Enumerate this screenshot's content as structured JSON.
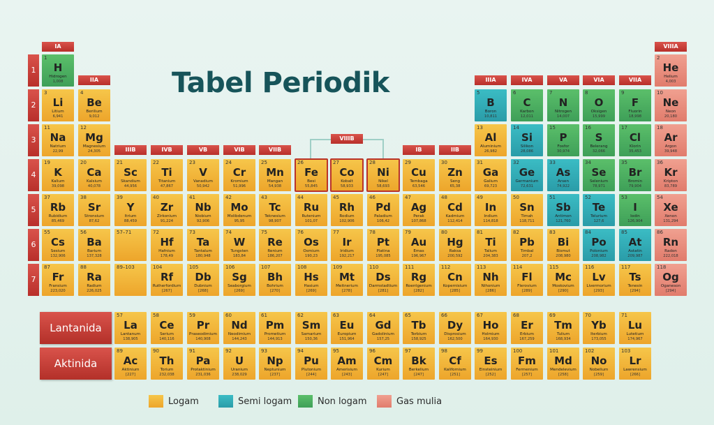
{
  "title": "Tabel Periodik",
  "colors": {
    "metal": "#f0b033",
    "metalloid": "#2fa9b3",
    "nonmetal": "#4aae60",
    "noble": "#e68b7b",
    "label": "#c23c35",
    "title": "#17545a"
  },
  "groups": [
    "IA",
    "IIA",
    "IIIB",
    "IVB",
    "VB",
    "VIB",
    "VIIB",
    "VIIIB",
    "IB",
    "IIB",
    "IIIA",
    "IVA",
    "VA",
    "VIA",
    "VIIA",
    "VIIIA"
  ],
  "periods": [
    "1",
    "2",
    "3",
    "4",
    "5",
    "6",
    "7"
  ],
  "series_labels": {
    "lanthanide": "Lantanida",
    "actinide": "Aktinida"
  },
  "legend": [
    {
      "label": "Logam",
      "type": "metal"
    },
    {
      "label": "Semi logam",
      "type": "metalloid"
    },
    {
      "label": "Non logam",
      "type": "nonmetal"
    },
    {
      "label": "Gas mulia",
      "type": "noble"
    }
  ],
  "elements": [
    {
      "n": "1",
      "s": "H",
      "name": "Hidrogen",
      "m": "1,008",
      "t": "nonmetal",
      "row": 0,
      "col": 0
    },
    {
      "n": "2",
      "s": "He",
      "name": "Helium",
      "m": "4,003",
      "t": "noble",
      "row": 0,
      "col": 17
    },
    {
      "n": "3",
      "s": "Li",
      "name": "Litium",
      "m": "6,941",
      "t": "metal",
      "row": 1,
      "col": 0
    },
    {
      "n": "4",
      "s": "Be",
      "name": "Berilium",
      "m": "9,012",
      "t": "metal",
      "row": 1,
      "col": 1
    },
    {
      "n": "5",
      "s": "B",
      "name": "Boron",
      "m": "10,811",
      "t": "metalloid",
      "row": 1,
      "col": 12
    },
    {
      "n": "6",
      "s": "C",
      "name": "Karbon",
      "m": "12,011",
      "t": "nonmetal",
      "row": 1,
      "col": 13
    },
    {
      "n": "7",
      "s": "N",
      "name": "Nitrogen",
      "m": "14,007",
      "t": "nonmetal",
      "row": 1,
      "col": 14
    },
    {
      "n": "8",
      "s": "O",
      "name": "Oksigen",
      "m": "15,999",
      "t": "nonmetal",
      "row": 1,
      "col": 15
    },
    {
      "n": "9",
      "s": "F",
      "name": "Fluorin",
      "m": "18,998",
      "t": "nonmetal",
      "row": 1,
      "col": 16
    },
    {
      "n": "10",
      "s": "Ne",
      "name": "Neon",
      "m": "20,180",
      "t": "noble",
      "row": 1,
      "col": 17
    },
    {
      "n": "11",
      "s": "Na",
      "name": "Natrium",
      "m": "22,99",
      "t": "metal",
      "row": 2,
      "col": 0
    },
    {
      "n": "12",
      "s": "Mg",
      "name": "Magnesium",
      "m": "24,305",
      "t": "metal",
      "row": 2,
      "col": 1
    },
    {
      "n": "13",
      "s": "Al",
      "name": "Aluminium",
      "m": "26,982",
      "t": "metal",
      "row": 2,
      "col": 12
    },
    {
      "n": "14",
      "s": "Si",
      "name": "Silikon",
      "m": "28,086",
      "t": "metalloid",
      "row": 2,
      "col": 13
    },
    {
      "n": "15",
      "s": "P",
      "name": "Fosfor",
      "m": "30,974",
      "t": "nonmetal",
      "row": 2,
      "col": 14
    },
    {
      "n": "16",
      "s": "S",
      "name": "Belerang",
      "m": "32,066",
      "t": "nonmetal",
      "row": 2,
      "col": 15
    },
    {
      "n": "17",
      "s": "Cl",
      "name": "Klorin",
      "m": "35,453",
      "t": "nonmetal",
      "row": 2,
      "col": 16
    },
    {
      "n": "18",
      "s": "Ar",
      "name": "Argon",
      "m": "39,948",
      "t": "noble",
      "row": 2,
      "col": 17
    },
    {
      "n": "19",
      "s": "K",
      "name": "Kalium",
      "m": "39,098",
      "t": "metal",
      "row": 3,
      "col": 0
    },
    {
      "n": "20",
      "s": "Ca",
      "name": "Kalsium",
      "m": "40,078",
      "t": "metal",
      "row": 3,
      "col": 1
    },
    {
      "n": "21",
      "s": "Sc",
      "name": "Skandium",
      "m": "44,956",
      "t": "metal",
      "row": 3,
      "col": 2
    },
    {
      "n": "22",
      "s": "Ti",
      "name": "Titanium",
      "m": "47,867",
      "t": "metal",
      "row": 3,
      "col": 3
    },
    {
      "n": "23",
      "s": "V",
      "name": "Vanadium",
      "m": "50,942",
      "t": "metal",
      "row": 3,
      "col": 4
    },
    {
      "n": "24",
      "s": "Cr",
      "name": "Kromium",
      "m": "51,996",
      "t": "metal",
      "row": 3,
      "col": 5
    },
    {
      "n": "25",
      "s": "Mn",
      "name": "Mangan",
      "m": "54,938",
      "t": "metal",
      "row": 3,
      "col": 6
    },
    {
      "n": "26",
      "s": "Fe",
      "name": "Besi",
      "m": "55,845",
      "t": "metal",
      "row": 3,
      "col": 7,
      "hl": true
    },
    {
      "n": "27",
      "s": "Co",
      "name": "Kobalt",
      "m": "58,933",
      "t": "metal",
      "row": 3,
      "col": 8,
      "hl": true
    },
    {
      "n": "28",
      "s": "Ni",
      "name": "Nikel",
      "m": "58,693",
      "t": "metal",
      "row": 3,
      "col": 9,
      "hl": true
    },
    {
      "n": "29",
      "s": "Cu",
      "name": "Tembaga",
      "m": "63,546",
      "t": "metal",
      "row": 3,
      "col": 10
    },
    {
      "n": "30",
      "s": "Zn",
      "name": "Seng",
      "m": "65,38",
      "t": "metal",
      "row": 3,
      "col": 11
    },
    {
      "n": "31",
      "s": "Ga",
      "name": "Galium",
      "m": "69,723",
      "t": "metal",
      "row": 3,
      "col": 12
    },
    {
      "n": "32",
      "s": "Ge",
      "name": "Germanium",
      "m": "72,631",
      "t": "metalloid",
      "row": 3,
      "col": 13
    },
    {
      "n": "33",
      "s": "As",
      "name": "Arsen",
      "m": "74,922",
      "t": "metalloid",
      "row": 3,
      "col": 14
    },
    {
      "n": "34",
      "s": "Se",
      "name": "Selenium",
      "m": "78,971",
      "t": "nonmetal",
      "row": 3,
      "col": 15
    },
    {
      "n": "35",
      "s": "Br",
      "name": "Bromin",
      "m": "79,904",
      "t": "nonmetal",
      "row": 3,
      "col": 16
    },
    {
      "n": "36",
      "s": "Kr",
      "name": "Kripton",
      "m": "83,789",
      "t": "noble",
      "row": 3,
      "col": 17
    },
    {
      "n": "37",
      "s": "Rb",
      "name": "Rubidium",
      "m": "85,469",
      "t": "metal",
      "row": 4,
      "col": 0
    },
    {
      "n": "38",
      "s": "Sr",
      "name": "Stronsium",
      "m": "87,62",
      "t": "metal",
      "row": 4,
      "col": 1
    },
    {
      "n": "39",
      "s": "Y",
      "name": "Itrium",
      "m": "88,459",
      "t": "metal",
      "row": 4,
      "col": 2
    },
    {
      "n": "40",
      "s": "Zr",
      "name": "Zirkonium",
      "m": "91,224",
      "t": "metal",
      "row": 4,
      "col": 3
    },
    {
      "n": "41",
      "s": "Nb",
      "name": "Niobium",
      "m": "92,906",
      "t": "metal",
      "row": 4,
      "col": 4
    },
    {
      "n": "42",
      "s": "Mo",
      "name": "Molibdenum",
      "m": "95,95",
      "t": "metal",
      "row": 4,
      "col": 5
    },
    {
      "n": "43",
      "s": "Tc",
      "name": "Teknesium",
      "m": "98,907",
      "t": "metal",
      "row": 4,
      "col": 6
    },
    {
      "n": "44",
      "s": "Ru",
      "name": "Rutenium",
      "m": "101,07",
      "t": "metal",
      "row": 4,
      "col": 7
    },
    {
      "n": "45",
      "s": "Rh",
      "name": "Rodium",
      "m": "102,906",
      "t": "metal",
      "row": 4,
      "col": 8
    },
    {
      "n": "46",
      "s": "Pd",
      "name": "Paladium",
      "m": "106,42",
      "t": "metal",
      "row": 4,
      "col": 9
    },
    {
      "n": "47",
      "s": "Ag",
      "name": "Perak",
      "m": "107,868",
      "t": "metal",
      "row": 4,
      "col": 10
    },
    {
      "n": "48",
      "s": "Cd",
      "name": "Kadmium",
      "m": "112,414",
      "t": "metal",
      "row": 4,
      "col": 11
    },
    {
      "n": "49",
      "s": "In",
      "name": "Indium",
      "m": "114,818",
      "t": "metal",
      "row": 4,
      "col": 12
    },
    {
      "n": "50",
      "s": "Sn",
      "name": "Timah",
      "m": "118,711",
      "t": "metal",
      "row": 4,
      "col": 13
    },
    {
      "n": "51",
      "s": "Sb",
      "name": "Antimon",
      "m": "121,760",
      "t": "metalloid",
      "row": 4,
      "col": 14
    },
    {
      "n": "52",
      "s": "Te",
      "name": "Telurium",
      "m": "127,6",
      "t": "metalloid",
      "row": 4,
      "col": 15
    },
    {
      "n": "53",
      "s": "I",
      "name": "Iodin",
      "m": "126,904",
      "t": "nonmetal",
      "row": 4,
      "col": 16
    },
    {
      "n": "54",
      "s": "Xe",
      "name": "Xenon",
      "m": "131,294",
      "t": "noble",
      "row": 4,
      "col": 17
    },
    {
      "n": "55",
      "s": "Cs",
      "name": "Sesium",
      "m": "132,906",
      "t": "metal",
      "row": 5,
      "col": 0
    },
    {
      "n": "56",
      "s": "Ba",
      "name": "Barium",
      "m": "137,328",
      "t": "metal",
      "row": 5,
      "col": 1
    },
    {
      "n": "57–71",
      "s": "",
      "name": "",
      "m": "",
      "t": "metal",
      "row": 5,
      "col": 2,
      "ph": true
    },
    {
      "n": "72",
      "s": "Hf",
      "name": "Hafnium",
      "m": "178,49",
      "t": "metal",
      "row": 5,
      "col": 3
    },
    {
      "n": "73",
      "s": "Ta",
      "name": "Tantalum",
      "m": "180,948",
      "t": "metal",
      "row": 5,
      "col": 4
    },
    {
      "n": "74",
      "s": "W",
      "name": "Tungsten",
      "m": "183,84",
      "t": "metal",
      "row": 5,
      "col": 5
    },
    {
      "n": "75",
      "s": "Re",
      "name": "Renium",
      "m": "186,207",
      "t": "metal",
      "row": 5,
      "col": 6
    },
    {
      "n": "76",
      "s": "Os",
      "name": "Osmium",
      "m": "190,23",
      "t": "metal",
      "row": 5,
      "col": 7
    },
    {
      "n": "77",
      "s": "Ir",
      "name": "Iridium",
      "m": "192,217",
      "t": "metal",
      "row": 5,
      "col": 8
    },
    {
      "n": "78",
      "s": "Pt",
      "name": "Platina",
      "m": "195,085",
      "t": "metal",
      "row": 5,
      "col": 9
    },
    {
      "n": "79",
      "s": "Au",
      "name": "Emas",
      "m": "196,967",
      "t": "metal",
      "row": 5,
      "col": 10
    },
    {
      "n": "80",
      "s": "Hg",
      "name": "Raksa",
      "m": "200,592",
      "t": "metal",
      "row": 5,
      "col": 11
    },
    {
      "n": "81",
      "s": "Ti",
      "name": "Talium",
      "m": "204,383",
      "t": "metal",
      "row": 5,
      "col": 12
    },
    {
      "n": "82",
      "s": "Pb",
      "name": "Timbal",
      "m": "207,2",
      "t": "metal",
      "row": 5,
      "col": 13
    },
    {
      "n": "83",
      "s": "Bi",
      "name": "Bismut",
      "m": "208,980",
      "t": "metal",
      "row": 5,
      "col": 14
    },
    {
      "n": "84",
      "s": "Po",
      "name": "Polonium",
      "m": "208,982",
      "t": "metalloid",
      "row": 5,
      "col": 15
    },
    {
      "n": "85",
      "s": "At",
      "name": "Astatin",
      "m": "209,987",
      "t": "metalloid",
      "row": 5,
      "col": 16
    },
    {
      "n": "86",
      "s": "Rn",
      "name": "Radon",
      "m": "222,018",
      "t": "noble",
      "row": 5,
      "col": 17
    },
    {
      "n": "87",
      "s": "Fr",
      "name": "Fransium",
      "m": "223,020",
      "t": "metal",
      "row": 6,
      "col": 0
    },
    {
      "n": "88",
      "s": "Ra",
      "name": "Radium",
      "m": "226,025",
      "t": "metal",
      "row": 6,
      "col": 1
    },
    {
      "n": "89–103",
      "s": "",
      "name": "",
      "m": "",
      "t": "metal",
      "row": 6,
      "col": 2,
      "ph": true
    },
    {
      "n": "104",
      "s": "Rf",
      "name": "Rutherfordium",
      "m": "[267]",
      "t": "metal",
      "row": 6,
      "col": 3
    },
    {
      "n": "105",
      "s": "Db",
      "name": "Dubnium",
      "m": "[268]",
      "t": "metal",
      "row": 6,
      "col": 4
    },
    {
      "n": "106",
      "s": "Sg",
      "name": "Seaborgium",
      "m": "[269]",
      "t": "metal",
      "row": 6,
      "col": 5
    },
    {
      "n": "107",
      "s": "Bh",
      "name": "Bohrium",
      "m": "[270]",
      "t": "metal",
      "row": 6,
      "col": 6
    },
    {
      "n": "108",
      "s": "Hs",
      "name": "Hasium",
      "m": "[269]",
      "t": "metal",
      "row": 6,
      "col": 7
    },
    {
      "n": "109",
      "s": "Mt",
      "name": "Meitnerium",
      "m": "[278]",
      "t": "metal",
      "row": 6,
      "col": 8
    },
    {
      "n": "110",
      "s": "Ds",
      "name": "Darmstadtium",
      "m": "[281]",
      "t": "metal",
      "row": 6,
      "col": 9
    },
    {
      "n": "111",
      "s": "Rg",
      "name": "Roentgenium",
      "m": "[282]",
      "t": "metal",
      "row": 6,
      "col": 10
    },
    {
      "n": "112",
      "s": "Cn",
      "name": "Kopernisium",
      "m": "[285]",
      "t": "metal",
      "row": 6,
      "col": 11
    },
    {
      "n": "113",
      "s": "Nh",
      "name": "Nihonium",
      "m": "[286]",
      "t": "metal",
      "row": 6,
      "col": 12
    },
    {
      "n": "114",
      "s": "Fl",
      "name": "Flerovium",
      "m": "[289]",
      "t": "metal",
      "row": 6,
      "col": 13
    },
    {
      "n": "115",
      "s": "Mc",
      "name": "Moskovium",
      "m": "[290]",
      "t": "metal",
      "row": 6,
      "col": 14
    },
    {
      "n": "116",
      "s": "Lv",
      "name": "Livermorium",
      "m": "[293]",
      "t": "metal",
      "row": 6,
      "col": 15
    },
    {
      "n": "117",
      "s": "Ts",
      "name": "Tenesin",
      "m": "[294]",
      "t": "metal",
      "row": 6,
      "col": 16
    },
    {
      "n": "118",
      "s": "Og",
      "name": "Oganeson",
      "m": "[294]",
      "t": "noble",
      "row": 6,
      "col": 17
    },
    {
      "n": "57",
      "s": "La",
      "name": "Lantanum",
      "m": "138,905",
      "t": "metal",
      "row": 7,
      "col": 2
    },
    {
      "n": "58",
      "s": "Ce",
      "name": "Serium",
      "m": "140,116",
      "t": "metal",
      "row": 7,
      "col": 3
    },
    {
      "n": "59",
      "s": "Pr",
      "name": "Praseodimium",
      "m": "140,908",
      "t": "metal",
      "row": 7,
      "col": 4
    },
    {
      "n": "60",
      "s": "Nd",
      "name": "Neodimium",
      "m": "144,243",
      "t": "metal",
      "row": 7,
      "col": 5
    },
    {
      "n": "61",
      "s": "Pm",
      "name": "Prometium",
      "m": "144,913",
      "t": "metal",
      "row": 7,
      "col": 6
    },
    {
      "n": "62",
      "s": "Sm",
      "name": "Samarium",
      "m": "150,36",
      "t": "metal",
      "row": 7,
      "col": 7
    },
    {
      "n": "63",
      "s": "Eu",
      "name": "Europium",
      "m": "151,964",
      "t": "metal",
      "row": 7,
      "col": 8
    },
    {
      "n": "64",
      "s": "Gd",
      "name": "Gadolinium",
      "m": "157,25",
      "t": "metal",
      "row": 7,
      "col": 9
    },
    {
      "n": "65",
      "s": "Tb",
      "name": "Terbium",
      "m": "158,925",
      "t": "metal",
      "row": 7,
      "col": 10
    },
    {
      "n": "66",
      "s": "Dy",
      "name": "Disprosium",
      "m": "162,500",
      "t": "metal",
      "row": 7,
      "col": 11
    },
    {
      "n": "67",
      "s": "Ho",
      "name": "Holmium",
      "m": "164,930",
      "t": "metal",
      "row": 7,
      "col": 12
    },
    {
      "n": "68",
      "s": "Er",
      "name": "Erbium",
      "m": "167,259",
      "t": "metal",
      "row": 7,
      "col": 13
    },
    {
      "n": "69",
      "s": "Tm",
      "name": "Tulium",
      "m": "168,934",
      "t": "metal",
      "row": 7,
      "col": 14
    },
    {
      "n": "70",
      "s": "Yb",
      "name": "Iterbium",
      "m": "173,055",
      "t": "metal",
      "row": 7,
      "col": 15
    },
    {
      "n": "71",
      "s": "Lu",
      "name": "Lutetium",
      "m": "174,967",
      "t": "metal",
      "row": 7,
      "col": 16
    },
    {
      "n": "89",
      "s": "Ac",
      "name": "Aktinium",
      "m": "[227]",
      "t": "metal",
      "row": 8,
      "col": 2
    },
    {
      "n": "90",
      "s": "Th",
      "name": "Torium",
      "m": "232,038",
      "t": "metal",
      "row": 8,
      "col": 3
    },
    {
      "n": "91",
      "s": "Pa",
      "name": "Protaktinium",
      "m": "231,036",
      "t": "metal",
      "row": 8,
      "col": 4
    },
    {
      "n": "92",
      "s": "U",
      "name": "Uranium",
      "m": "238,029",
      "t": "metal",
      "row": 8,
      "col": 5
    },
    {
      "n": "93",
      "s": "Np",
      "name": "Neptunium",
      "m": "[237]",
      "t": "metal",
      "row": 8,
      "col": 6
    },
    {
      "n": "94",
      "s": "Pu",
      "name": "Plutonium",
      "m": "[244]",
      "t": "metal",
      "row": 8,
      "col": 7
    },
    {
      "n": "95",
      "s": "Am",
      "name": "Amerisium",
      "m": "[243]",
      "t": "metal",
      "row": 8,
      "col": 8
    },
    {
      "n": "96",
      "s": "Cm",
      "name": "Kurium",
      "m": "[247]",
      "t": "metal",
      "row": 8,
      "col": 9
    },
    {
      "n": "97",
      "s": "Bk",
      "name": "Berkelium",
      "m": "[247]",
      "t": "metal",
      "row": 8,
      "col": 10
    },
    {
      "n": "98",
      "s": "Cf",
      "name": "Kalifornium",
      "m": "[251]",
      "t": "metal",
      "row": 8,
      "col": 11
    },
    {
      "n": "99",
      "s": "Es",
      "name": "Einsteinium",
      "m": "[252]",
      "t": "metal",
      "row": 8,
      "col": 12
    },
    {
      "n": "100",
      "s": "Fm",
      "name": "Fermenium",
      "m": "[257]",
      "t": "metal",
      "row": 8,
      "col": 13
    },
    {
      "n": "101",
      "s": "Md",
      "name": "Mendelevium",
      "m": "[258]",
      "t": "metal",
      "row": 8,
      "col": 14
    },
    {
      "n": "102",
      "s": "No",
      "name": "Nobelium",
      "m": "[259]",
      "t": "metal",
      "row": 8,
      "col": 15
    },
    {
      "n": "103",
      "s": "Lr",
      "name": "Lawrensium",
      "m": "[266]",
      "t": "metal",
      "row": 8,
      "col": 16
    }
  ]
}
